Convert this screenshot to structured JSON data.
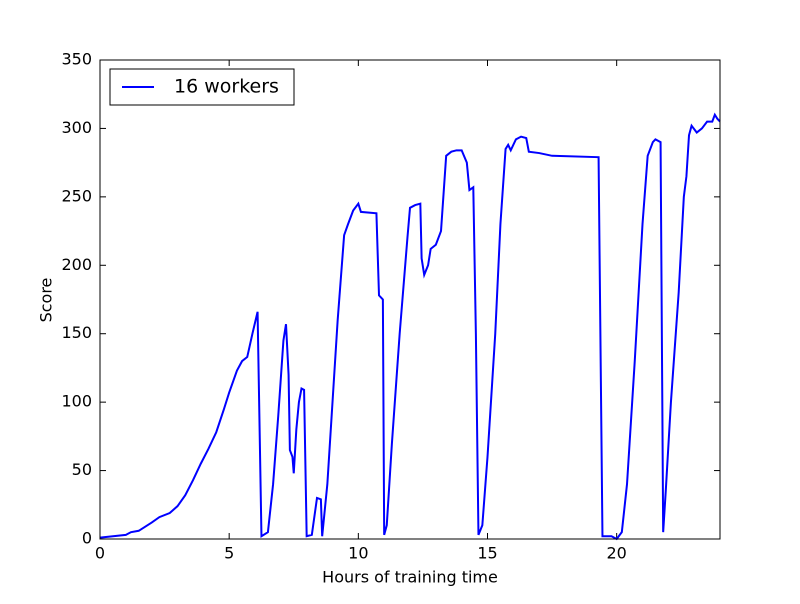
{
  "chart_data": {
    "type": "line",
    "xlabel": "Hours of training time",
    "ylabel": "Score",
    "x": [
      0,
      1,
      1.2,
      1.5,
      2,
      2.3,
      2.7,
      3,
      3.3,
      3.6,
      3.9,
      4.2,
      4.5,
      4.8,
      5.0,
      5.3,
      5.5,
      5.7,
      5.9,
      6.1,
      6.25,
      6.5,
      6.7,
      6.9,
      7.1,
      7.2,
      7.3,
      7.35,
      7.45,
      7.5,
      7.6,
      7.7,
      7.8,
      7.9,
      8.0,
      8.2,
      8.4,
      8.55,
      8.6,
      8.8,
      9.0,
      9.2,
      9.45,
      9.6,
      9.8,
      10.0,
      10.1,
      10.7,
      10.8,
      10.95,
      11.0,
      11.1,
      11.3,
      11.6,
      11.9,
      12.0,
      12.2,
      12.4,
      12.45,
      12.55,
      12.7,
      12.8,
      13.0,
      13.2,
      13.4,
      13.6,
      13.8,
      14.0,
      14.2,
      14.3,
      14.45,
      14.55,
      14.65,
      14.8,
      15.0,
      15.3,
      15.5,
      15.7,
      15.8,
      15.9,
      16.1,
      16.3,
      16.5,
      16.6,
      17.0,
      17.5,
      19.3,
      19.45,
      19.8,
      20.0,
      20.2,
      20.4,
      20.7,
      21.0,
      21.2,
      21.4,
      21.5,
      21.7,
      21.8,
      21.9,
      22.1,
      22.4,
      22.6,
      22.7,
      22.8,
      22.9,
      23.1,
      23.3,
      23.5,
      23.7,
      23.8,
      23.9,
      24.0
    ],
    "series": [
      {
        "name": "16 workers",
        "color": "#0000ff",
        "values": [
          1,
          3,
          5,
          6,
          12,
          16,
          19,
          24,
          32,
          43,
          55,
          66,
          78,
          95,
          107,
          123,
          130,
          133,
          150,
          166,
          2,
          5,
          40,
          90,
          145,
          157,
          120,
          65,
          60,
          48,
          80,
          100,
          110,
          109,
          2,
          3,
          30,
          29,
          2,
          40,
          100,
          160,
          222,
          230,
          240,
          245,
          239,
          238,
          178,
          175,
          3,
          10,
          70,
          150,
          220,
          242,
          244,
          245,
          205,
          193,
          200,
          212,
          215,
          225,
          280,
          283,
          284,
          284,
          275,
          255,
          257,
          150,
          3,
          10,
          60,
          150,
          230,
          285,
          288,
          284,
          292,
          294,
          293,
          283,
          282,
          280,
          279,
          2,
          2,
          0,
          5,
          40,
          130,
          230,
          280,
          290,
          292,
          290,
          5,
          35,
          100,
          180,
          250,
          265,
          295,
          302,
          297,
          300,
          305,
          305,
          310,
          307,
          305
        ]
      }
    ],
    "xlim": [
      0,
      24
    ],
    "xticks": [
      0,
      5,
      10,
      15,
      20
    ],
    "ylim": [
      0,
      350
    ],
    "yticks": [
      0,
      50,
      100,
      150,
      200,
      250,
      300,
      350
    ],
    "legend": "upper left"
  }
}
